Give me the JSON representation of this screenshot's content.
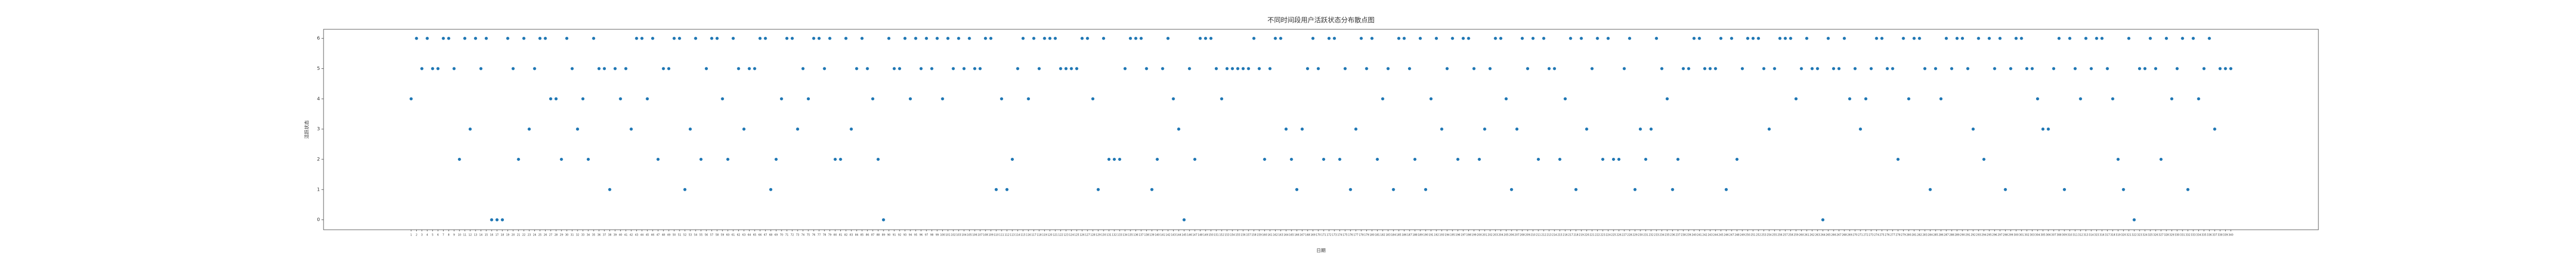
{
  "chart_data": {
    "type": "scatter",
    "title": "不同时间段用户活跃状态分布散点图",
    "x_label": "日期",
    "y_label": "活跃状态",
    "color": "#1f77b4",
    "ylim": [
      -0.33,
      6.3
    ],
    "yticks": [
      0,
      1,
      2,
      3,
      4,
      5,
      6
    ],
    "categories": [
      "1",
      "2",
      "3",
      "4",
      "5",
      "6",
      "7",
      "8",
      "9",
      "10",
      "11",
      "12",
      "13",
      "14",
      "15",
      "16",
      "17",
      "18",
      "19",
      "20",
      "21",
      "22",
      "23",
      "24",
      "25",
      "26",
      "27",
      "28",
      "29",
      "30",
      "31",
      "32",
      "33",
      "34",
      "35",
      "36",
      "37",
      "38",
      "39",
      "40",
      "41",
      "42",
      "43",
      "44",
      "45",
      "46",
      "47",
      "48",
      "49",
      "50",
      "51",
      "52",
      "53",
      "54",
      "55",
      "56",
      "57",
      "58",
      "59",
      "60",
      "61",
      "62",
      "63",
      "64",
      "65",
      "66",
      "67",
      "68",
      "69",
      "70",
      "71",
      "72",
      "73",
      "74",
      "75",
      "76",
      "77",
      "78",
      "79",
      "80",
      "81",
      "82",
      "83",
      "84",
      "85",
      "86",
      "87",
      "88",
      "89",
      "90",
      "91",
      "92",
      "93",
      "94",
      "95",
      "96",
      "97",
      "98",
      "99",
      "100",
      "101",
      "102",
      "103",
      "104",
      "105",
      "106",
      "107",
      "108",
      "109",
      "110",
      "111",
      "112",
      "113",
      "114",
      "115",
      "116",
      "117",
      "118",
      "119",
      "120",
      "121",
      "122",
      "123",
      "124",
      "125",
      "126",
      "127",
      "128",
      "129",
      "130",
      "131",
      "132",
      "133",
      "134",
      "135",
      "136",
      "137",
      "138",
      "139",
      "140",
      "141",
      "142",
      "143",
      "144",
      "145",
      "146",
      "147",
      "148",
      "149",
      "150",
      "151",
      "152",
      "153",
      "154",
      "155",
      "156",
      "157",
      "158",
      "159",
      "160",
      "161",
      "162",
      "163",
      "164",
      "165",
      "166",
      "167",
      "168",
      "169",
      "170",
      "171",
      "172",
      "173",
      "174",
      "175",
      "176",
      "177",
      "178",
      "179",
      "180",
      "181",
      "182",
      "183",
      "184",
      "185",
      "186",
      "187",
      "188",
      "189",
      "190",
      "191",
      "192",
      "193",
      "194",
      "195",
      "196",
      "197",
      "198",
      "199",
      "200",
      "201",
      "202",
      "203",
      "204",
      "205",
      "206",
      "207",
      "208",
      "209",
      "210",
      "211",
      "212",
      "213",
      "214",
      "215",
      "216",
      "217",
      "218",
      "219",
      "220",
      "221",
      "222",
      "223",
      "224",
      "225",
      "226",
      "227",
      "228",
      "229",
      "230",
      "231",
      "232",
      "233",
      "234",
      "235",
      "236",
      "237",
      "238",
      "239",
      "240",
      "241",
      "242",
      "243",
      "244",
      "245",
      "246",
      "247",
      "248",
      "249",
      "250",
      "251",
      "252",
      "253",
      "254",
      "255",
      "256",
      "257",
      "258",
      "259",
      "260",
      "261",
      "262",
      "263",
      "264",
      "265",
      "266",
      "267",
      "268",
      "269",
      "270",
      "271",
      "272",
      "273",
      "274",
      "275",
      "276",
      "277",
      "278",
      "279",
      "280",
      "281",
      "282",
      "283",
      "284",
      "285",
      "286",
      "287",
      "288",
      "289",
      "290",
      "291",
      "292",
      "293",
      "294",
      "295",
      "296",
      "297",
      "298",
      "299",
      "300",
      "301",
      "302",
      "303",
      "304",
      "305",
      "306",
      "307",
      "308",
      "309",
      "310",
      "311",
      "312",
      "313",
      "314",
      "315",
      "316",
      "317",
      "318",
      "319",
      "320",
      "321",
      "322",
      "323",
      "324",
      "325",
      "326",
      "327",
      "328",
      "329",
      "330",
      "331",
      "332",
      "333",
      "334",
      "335",
      "336",
      "337",
      "338",
      "339",
      "340"
    ],
    "values": [
      4,
      6,
      5,
      6,
      5,
      5,
      6,
      6,
      5,
      2,
      6,
      3,
      6,
      5,
      6,
      0,
      0,
      0,
      6,
      5,
      2,
      6,
      3,
      5,
      6,
      6,
      4,
      4,
      2,
      6,
      5,
      3,
      4,
      2,
      6,
      5,
      5,
      1,
      5,
      4,
      5,
      3,
      6,
      6,
      4,
      6,
      2,
      5,
      5,
      6,
      6,
      1,
      3,
      6,
      2,
      5,
      6,
      6,
      4,
      2,
      6,
      5,
      3,
      5,
      5,
      6,
      6,
      1,
      2,
      4,
      6,
      6,
      3,
      5,
      4,
      6,
      6,
      5,
      6,
      2,
      2,
      6,
      3,
      5,
      6,
      5,
      4,
      2,
      0,
      6,
      5,
      5,
      6,
      4,
      6,
      5,
      6,
      5,
      6,
      4,
      6,
      5,
      6,
      5,
      6,
      5,
      5,
      6,
      6,
      1,
      4,
      1,
      2,
      5,
      6,
      4,
      6,
      5,
      6,
      6,
      6,
      5,
      5,
      5,
      5,
      6,
      6,
      4,
      1,
      6,
      2,
      2,
      2,
      5,
      6,
      6,
      6,
      5,
      1,
      2,
      5,
      6,
      4,
      3,
      0,
      5,
      2,
      6,
      6,
      6,
      5,
      4,
      5,
      5,
      5,
      5,
      5,
      6,
      5,
      2,
      5,
      6,
      6,
      3,
      2,
      1,
      3,
      5,
      6,
      5,
      2,
      6,
      6,
      2,
      5,
      1,
      3,
      6,
      5,
      6,
      2,
      4,
      5,
      1,
      6,
      6,
      5,
      2,
      6,
      1,
      4,
      6,
      3,
      5,
      6,
      2,
      6,
      6,
      5,
      2,
      3,
      5,
      6,
      6,
      4,
      1,
      3,
      6,
      5,
      6,
      2,
      6,
      5,
      5,
      2,
      4,
      6,
      1,
      6,
      3,
      5,
      6,
      2,
      6,
      2,
      2,
      5,
      6,
      1,
      3,
      2,
      3,
      6,
      5,
      4,
      1,
      2,
      5,
      5,
      6,
      6,
      5,
      5,
      5,
      6,
      1,
      6,
      2,
      5,
      6,
      6,
      6,
      5,
      3,
      5,
      6,
      6,
      6,
      4,
      5,
      6,
      5,
      5,
      0,
      6,
      5,
      5,
      6,
      4,
      5,
      3,
      4,
      5,
      6,
      6,
      5,
      5,
      2,
      6,
      4,
      6,
      6,
      5,
      1,
      5,
      4,
      6,
      5,
      6,
      6,
      5,
      3,
      6,
      2,
      6,
      5,
      6,
      1,
      5,
      6,
      6,
      5,
      5,
      4,
      3,
      3,
      5,
      6,
      1,
      6,
      5,
      4,
      6,
      5,
      6,
      6,
      5,
      4,
      2,
      1,
      6,
      0,
      5,
      5,
      6,
      5,
      2,
      6,
      4,
      5,
      6,
      1,
      6,
      4,
      5,
      6,
      3,
      5,
      5,
      5
    ]
  }
}
